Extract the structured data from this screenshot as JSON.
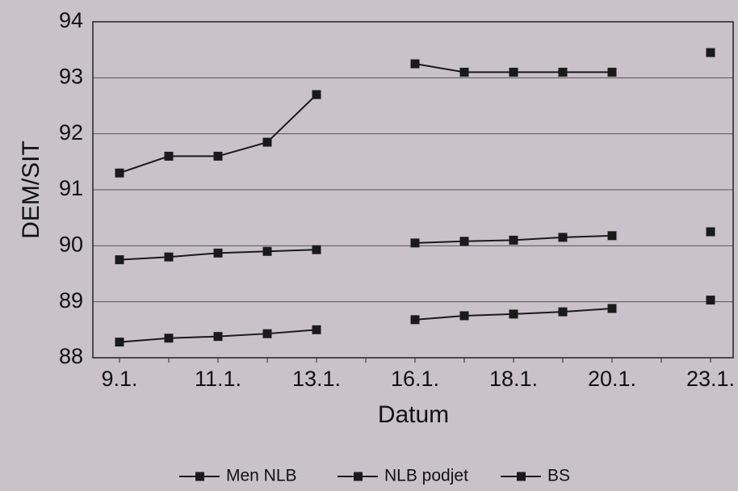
{
  "chart_data": {
    "type": "line",
    "xlabel": "Datum",
    "ylabel": "DEM/SIT",
    "categories": [
      "9.1.",
      null,
      "11.1.",
      null,
      "13.1.",
      null,
      "16.1.",
      null,
      "18.1.",
      null,
      "20.1.",
      null,
      "23.1."
    ],
    "series": [
      {
        "name": "Men NLB",
        "color": "#1a1a1a",
        "values": [
          91.3,
          91.6,
          91.6,
          91.85,
          92.7,
          null,
          93.25,
          93.1,
          93.1,
          93.1,
          93.1,
          null,
          93.45
        ]
      },
      {
        "name": "NLB podjet",
        "color": "#1a1a1a",
        "values": [
          89.75,
          89.8,
          89.87,
          89.9,
          89.93,
          null,
          90.05,
          90.08,
          90.1,
          90.15,
          90.18,
          null,
          90.25
        ]
      },
      {
        "name": "BS",
        "color": "#1a1a1a",
        "values": [
          88.28,
          88.35,
          88.38,
          88.43,
          88.5,
          null,
          88.68,
          88.75,
          88.78,
          88.82,
          88.88,
          null,
          89.03
        ]
      }
    ],
    "ylim": [
      88,
      94
    ],
    "yticks": [
      88,
      89,
      90,
      91,
      92,
      93,
      94
    ],
    "grid": true,
    "legend": "bottom"
  }
}
